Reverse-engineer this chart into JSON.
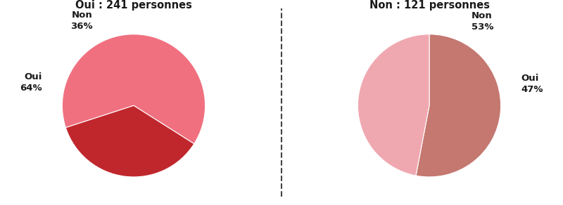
{
  "chart1": {
    "title": "Oui : 241 personnes",
    "slices": [
      64,
      36
    ],
    "labels": [
      "Oui\n64%",
      "Non\n36%"
    ],
    "colors": [
      "#F07080",
      "#C0272D"
    ],
    "startangle": 198
  },
  "chart2": {
    "title": "Non : 121 personnes",
    "slices": [
      53,
      47
    ],
    "labels": [
      "Non\n53%",
      "Oui\n47%"
    ],
    "colors": [
      "#C47870",
      "#F0A8B0"
    ],
    "startangle": 90
  },
  "bg_color": "#ffffff",
  "text_color": "#1a1a1a",
  "title_fontsize": 10.5,
  "label_fontsize": 9.5,
  "dashed_line_color": "#444444"
}
